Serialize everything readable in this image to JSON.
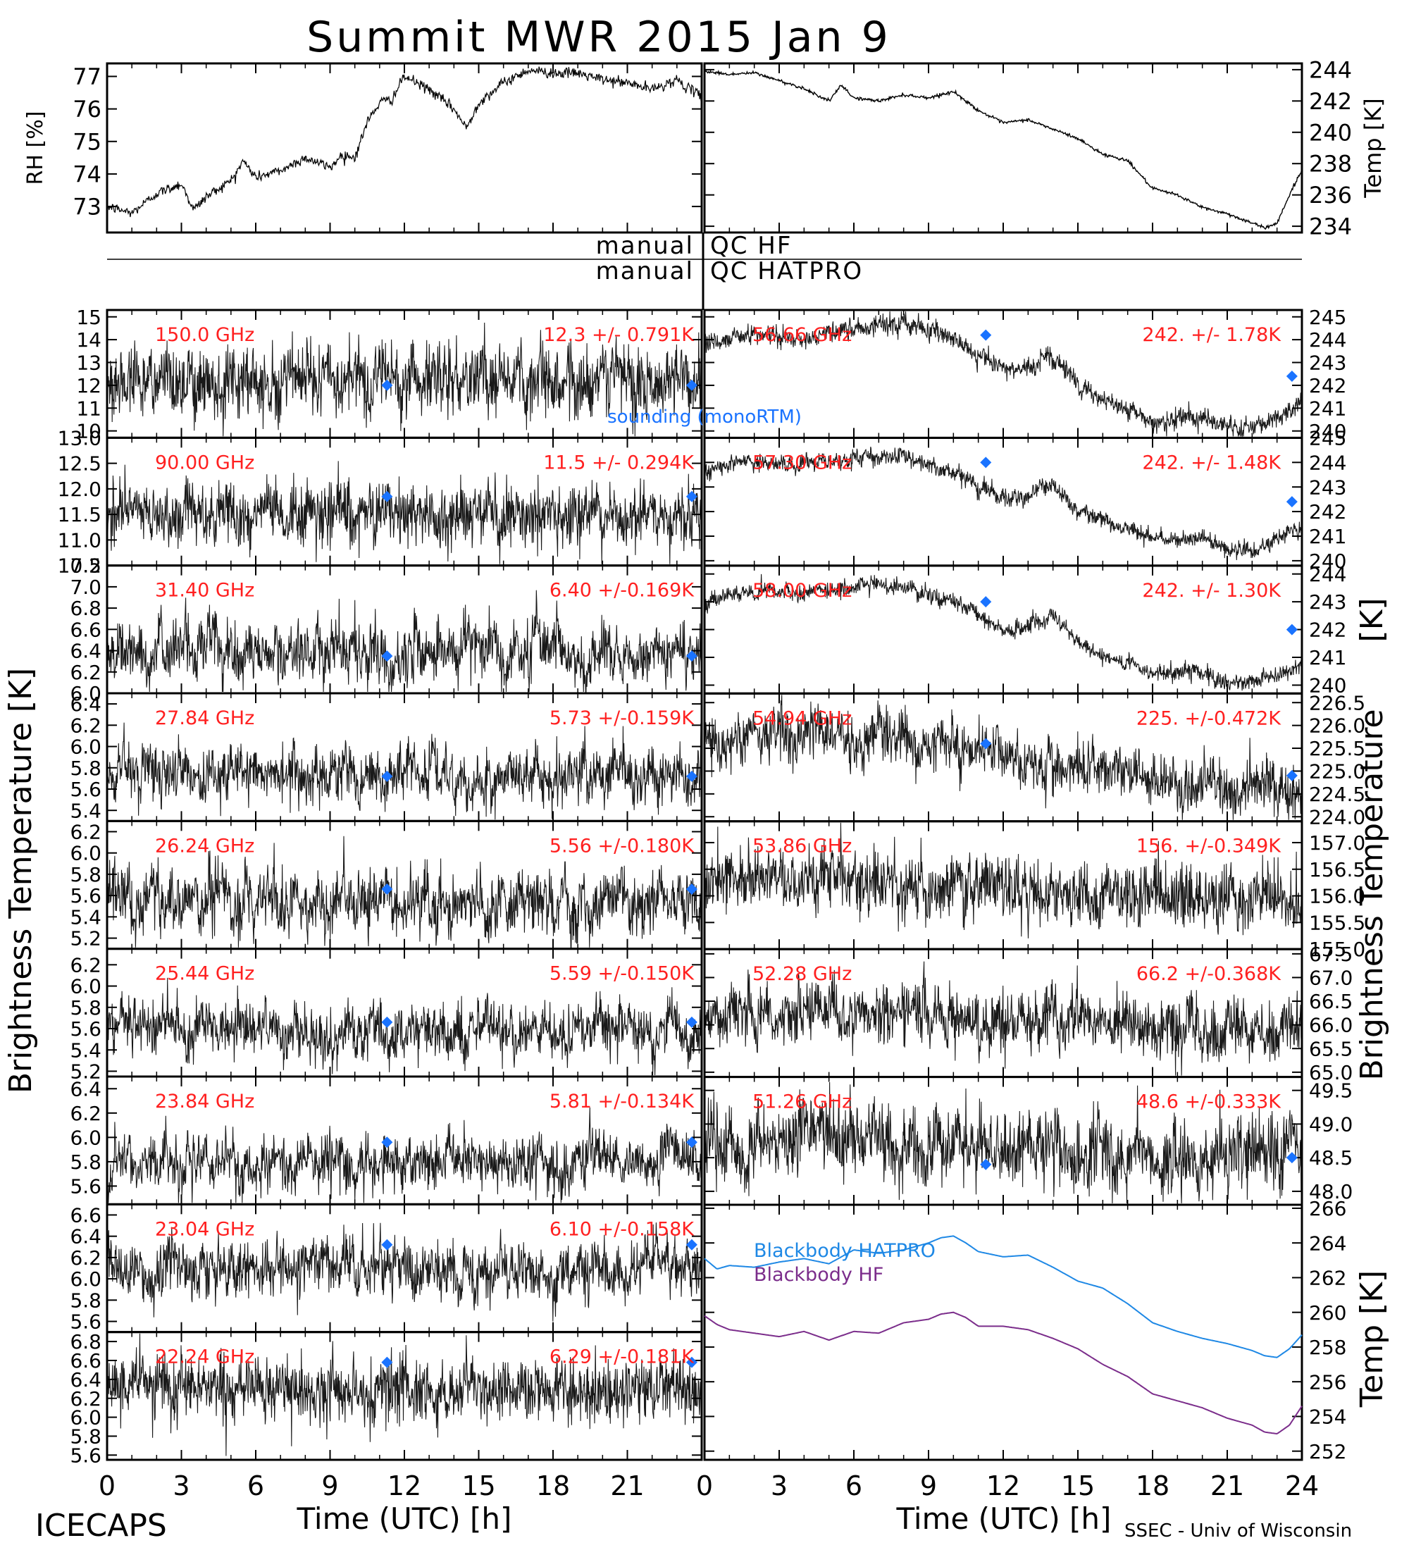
{
  "title": "Summit MWR 2015 Jan  9",
  "footer": {
    "left": "ICECAPS",
    "right": "SSEC - Univ of Wisconsin"
  },
  "qc": {
    "hf_prefix": "manual",
    "hf_label": "QC HF",
    "hatpro_prefix": "manual",
    "hatpro_label": "QC HATPRO"
  },
  "axis_labels": {
    "x": "Time (UTC) [h]",
    "rh": "RH [%]",
    "temp_top": "Temp [K]",
    "bt_left": "Brightness Temperature [K]",
    "bt_right_top": "[K]",
    "bt_right": "Brightness Temperature",
    "temp_bottom": "Temp [K]"
  },
  "colors": {
    "label_red": "#ff2020",
    "sounding_blue": "#1a73ff",
    "hatpro_line": "#1e88e5",
    "hf_line": "#7b2d8b",
    "data": "#000000"
  },
  "chart_data": {
    "type": "line",
    "x_ticks": [
      0,
      3,
      6,
      9,
      12,
      15,
      18,
      21,
      24
    ],
    "x_tick_labels_left": [
      "0",
      "3",
      "6",
      "9",
      "12",
      "15",
      "18",
      "21"
    ],
    "x_tick_labels_right": [
      "0",
      "3",
      "6",
      "9",
      "12",
      "15",
      "18",
      "21",
      "24"
    ],
    "sounding_label": "sounding (monoRTM)",
    "top_left": {
      "ylabel": "RH [%]",
      "ylim": [
        72.2,
        77.4
      ],
      "yticks": [
        73,
        74,
        75,
        76,
        77
      ],
      "x": [
        0,
        1,
        2,
        3,
        3.5,
        4,
        5,
        5.5,
        6,
        7,
        7.5,
        8,
        9,
        9.5,
        10,
        10.5,
        11,
        11.5,
        12,
        13,
        14,
        14.5,
        15,
        16,
        17,
        18,
        19,
        20,
        21,
        22,
        23,
        23.5,
        24
      ],
      "y": [
        73.0,
        72.8,
        73.4,
        73.7,
        72.9,
        73.3,
        73.8,
        74.4,
        73.9,
        74.1,
        74.3,
        74.5,
        74.2,
        74.6,
        74.5,
        75.6,
        76.2,
        76.3,
        77.0,
        76.6,
        76.0,
        75.4,
        76.2,
        76.8,
        77.2,
        77.1,
        77.1,
        76.9,
        76.8,
        76.6,
        76.9,
        76.6,
        76.4
      ]
    },
    "top_right": {
      "ylabel": "Temp [K]",
      "ylim": [
        233.6,
        244.4
      ],
      "yticks": [
        234,
        236,
        238,
        240,
        242,
        244
      ],
      "x": [
        0,
        1,
        2,
        3,
        4,
        5,
        5.5,
        6,
        7,
        8,
        9,
        10,
        11,
        12,
        13,
        14,
        15,
        16,
        17,
        18,
        19,
        20,
        21,
        22,
        22.5,
        23,
        23.5,
        24
      ],
      "y": [
        243.9,
        243.7,
        243.8,
        243.3,
        242.8,
        242.0,
        243.0,
        242.2,
        242.0,
        242.4,
        242.2,
        242.6,
        241.4,
        240.6,
        240.8,
        240.2,
        239.6,
        238.6,
        238.2,
        236.4,
        236.0,
        235.2,
        234.8,
        234.2,
        233.9,
        234.2,
        236.0,
        237.6
      ]
    },
    "left_panels": [
      {
        "freq": "150.0 GHz",
        "stats": "12.3 +/- 0.791K",
        "ylim": [
          9.7,
          15.3
        ],
        "yticks": [
          10,
          11,
          12,
          13,
          14,
          15
        ],
        "ytick_labels": [
          "10",
          "11",
          "12",
          "13",
          "14",
          "15"
        ],
        "mean": 12.3,
        "sd": 0.791,
        "sounding": [
          {
            "x": 11.3,
            "y": 12.0
          },
          {
            "x": 23.6,
            "y": 12.0
          }
        ],
        "noise": "medium"
      },
      {
        "freq": "90.00 GHz",
        "stats": "11.5 +/- 0.294K",
        "ylim": [
          10.5,
          13.0
        ],
        "yticks": [
          10.5,
          11.0,
          11.5,
          12.0,
          12.5,
          13.0
        ],
        "ytick_labels": [
          "10.5",
          "11.0",
          "11.5",
          "12.0",
          "12.5",
          "13.0"
        ],
        "mean": 11.5,
        "sd": 0.294,
        "sounding": [
          {
            "x": 11.3,
            "y": 11.85
          },
          {
            "x": 23.6,
            "y": 11.85
          }
        ],
        "noise": "medium"
      },
      {
        "freq": "31.40 GHz",
        "stats": "6.40 +/-0.169K",
        "ylim": [
          6.0,
          7.2
        ],
        "yticks": [
          6.0,
          6.2,
          6.4,
          6.6,
          6.8,
          7.0,
          7.2
        ],
        "ytick_labels": [
          "6.0",
          "6.2",
          "6.4",
          "6.6",
          "6.8",
          "7.0",
          "7.2"
        ],
        "mean": 6.4,
        "sd": 0.169,
        "sounding": [
          {
            "x": 11.3,
            "y": 6.35
          },
          {
            "x": 23.6,
            "y": 6.35
          }
        ],
        "noise": "spiky"
      },
      {
        "freq": "27.84 GHz",
        "stats": "5.73 +/-0.159K",
        "ylim": [
          5.3,
          6.5
        ],
        "yticks": [
          5.4,
          5.6,
          5.8,
          6.0,
          6.2,
          6.4
        ],
        "ytick_labels": [
          "5.4",
          "5.6",
          "5.8",
          "6.0",
          "6.2",
          "6.4"
        ],
        "mean": 5.73,
        "sd": 0.159,
        "sounding": [
          {
            "x": 11.3,
            "y": 5.72
          },
          {
            "x": 23.6,
            "y": 5.72
          }
        ],
        "noise": "spiky"
      },
      {
        "freq": "26.24 GHz",
        "stats": "5.56 +/-0.180K",
        "ylim": [
          5.1,
          6.3
        ],
        "yticks": [
          5.2,
          5.4,
          5.6,
          5.8,
          6.0,
          6.2
        ],
        "ytick_labels": [
          "5.2",
          "5.4",
          "5.6",
          "5.8",
          "6.0",
          "6.2"
        ],
        "mean": 5.56,
        "sd": 0.18,
        "sounding": [
          {
            "x": 11.3,
            "y": 5.66
          },
          {
            "x": 23.6,
            "y": 5.66
          }
        ],
        "noise": "spiky"
      },
      {
        "freq": "25.44 GHz",
        "stats": "5.59 +/-0.150K",
        "ylim": [
          5.15,
          6.35
        ],
        "yticks": [
          5.2,
          5.4,
          5.6,
          5.8,
          6.0,
          6.2
        ],
        "ytick_labels": [
          "5.2",
          "5.4",
          "5.6",
          "5.8",
          "6.0",
          "6.2"
        ],
        "mean": 5.59,
        "sd": 0.15,
        "sounding": [
          {
            "x": 11.3,
            "y": 5.66
          },
          {
            "x": 23.6,
            "y": 5.66
          }
        ],
        "noise": "spiky"
      },
      {
        "freq": "23.84 GHz",
        "stats": "5.81 +/-0.134K",
        "ylim": [
          5.45,
          6.5
        ],
        "yticks": [
          5.6,
          5.8,
          6.0,
          6.2,
          6.4
        ],
        "ytick_labels": [
          "5.6",
          "5.8",
          "6.0",
          "6.2",
          "6.4"
        ],
        "mean": 5.81,
        "sd": 0.134,
        "sounding": [
          {
            "x": 11.3,
            "y": 5.96
          },
          {
            "x": 23.6,
            "y": 5.96
          }
        ],
        "noise": "spiky"
      },
      {
        "freq": "23.04 GHz",
        "stats": "6.10 +/-0.158K",
        "ylim": [
          5.5,
          6.7
        ],
        "yticks": [
          5.6,
          5.8,
          6.0,
          6.2,
          6.4,
          6.6
        ],
        "ytick_labels": [
          "5.6",
          "5.8",
          "6.0",
          "6.2",
          "6.4",
          "6.6"
        ],
        "mean": 6.1,
        "sd": 0.158,
        "sounding": [
          {
            "x": 11.3,
            "y": 6.32
          },
          {
            "x": 23.6,
            "y": 6.32
          }
        ],
        "noise": "spiky"
      },
      {
        "freq": "22.24 GHz",
        "stats": "6.29 +/-0.181K",
        "ylim": [
          5.55,
          6.9
        ],
        "yticks": [
          5.6,
          5.8,
          6.0,
          6.2,
          6.4,
          6.6,
          6.8
        ],
        "ytick_labels": [
          "5.6",
          "5.8",
          "6.0",
          "6.2",
          "6.4",
          "6.6",
          "6.8"
        ],
        "mean": 6.29,
        "sd": 0.181,
        "sounding": [
          {
            "x": 11.3,
            "y": 6.58
          },
          {
            "x": 23.6,
            "y": 6.58
          }
        ],
        "noise": "medium"
      }
    ],
    "right_panels": [
      {
        "freq": "56.66 GHz",
        "stats": "242. +/- 1.78K",
        "ylim": [
          239.7,
          245.3
        ],
        "yticks": [
          240,
          241,
          242,
          243,
          244,
          245
        ],
        "ytick_labels": [
          "240",
          "241",
          "242",
          "243",
          "244",
          "245"
        ],
        "sounding": [
          {
            "x": 11.3,
            "y": 244.2
          },
          {
            "x": 23.6,
            "y": 242.4
          }
        ],
        "trend_x": [
          0,
          1,
          2,
          3,
          4,
          5,
          6,
          7,
          8,
          9,
          10,
          11,
          12,
          13,
          14,
          15,
          16,
          17,
          18,
          19,
          20,
          21,
          22,
          23,
          24
        ],
        "trend_y": [
          243.8,
          244.1,
          244.3,
          244.2,
          244.1,
          244.3,
          244.5,
          244.7,
          244.7,
          244.4,
          244.0,
          243.3,
          242.7,
          242.8,
          243.3,
          242.0,
          241.3,
          241.0,
          240.3,
          240.5,
          240.6,
          240.2,
          240.2,
          240.6,
          241.3
        ],
        "noise_sd": 0.22
      },
      {
        "freq": "57.30 GHz",
        "stats": "242. +/- 1.48K",
        "ylim": [
          239.8,
          245.0
        ],
        "yticks": [
          240,
          241,
          242,
          243,
          244,
          245
        ],
        "ytick_labels": [
          "240",
          "241",
          "242",
          "243",
          "244",
          "245"
        ],
        "sounding": [
          {
            "x": 11.3,
            "y": 244.0
          },
          {
            "x": 23.6,
            "y": 242.4
          }
        ],
        "trend_x": [
          0,
          1,
          2,
          3,
          4,
          5,
          6,
          7,
          8,
          9,
          10,
          11,
          12,
          13,
          14,
          15,
          16,
          17,
          18,
          19,
          20,
          21,
          22,
          23,
          24
        ],
        "trend_y": [
          243.6,
          243.9,
          244.0,
          244.0,
          243.9,
          244.1,
          244.2,
          244.3,
          244.3,
          244.0,
          243.6,
          243.0,
          242.6,
          242.6,
          243.1,
          242.0,
          241.6,
          241.3,
          240.8,
          240.9,
          240.9,
          240.5,
          240.5,
          240.9,
          241.3
        ],
        "noise_sd": 0.18
      },
      {
        "freq": "58.00 GHz",
        "stats": "242. +/- 1.30K",
        "ylim": [
          239.7,
          244.3
        ],
        "yticks": [
          240,
          241,
          242,
          243,
          244
        ],
        "ytick_labels": [
          "240",
          "241",
          "242",
          "243",
          "244"
        ],
        "sounding": [
          {
            "x": 11.3,
            "y": 243.0
          },
          {
            "x": 23.6,
            "y": 242.0
          }
        ],
        "trend_x": [
          0,
          1,
          2,
          3,
          4,
          5,
          6,
          7,
          8,
          9,
          10,
          11,
          12,
          13,
          14,
          15,
          16,
          17,
          18,
          19,
          20,
          21,
          22,
          23,
          24
        ],
        "trend_y": [
          242.9,
          243.2,
          243.3,
          243.3,
          243.3,
          243.4,
          243.5,
          243.6,
          243.6,
          243.3,
          243.0,
          242.5,
          242.0,
          242.0,
          242.5,
          241.5,
          241.0,
          240.8,
          240.4,
          240.5,
          240.5,
          240.1,
          240.1,
          240.4,
          240.8
        ],
        "noise_sd": 0.16
      },
      {
        "freq": "54.94 GHz",
        "stats": "225. +/-0.472K",
        "ylim": [
          223.9,
          226.7
        ],
        "yticks": [
          224.0,
          224.5,
          225.0,
          225.5,
          226.0,
          226.5
        ],
        "ytick_labels": [
          "224.0",
          "224.5",
          "225.0",
          "225.5",
          "226.0",
          "226.5"
        ],
        "sounding": [
          {
            "x": 11.3,
            "y": 225.6
          },
          {
            "x": 23.6,
            "y": 224.9
          }
        ],
        "trend_x": [
          0,
          3,
          6,
          9,
          12,
          15,
          18,
          21,
          24
        ],
        "trend_y": [
          225.6,
          225.8,
          225.7,
          225.6,
          225.3,
          225.0,
          224.8,
          224.6,
          224.7
        ],
        "noise_sd": 0.3
      },
      {
        "freq": "53.86 GHz",
        "stats": "156. +/-0.349K",
        "ylim": [
          155.0,
          157.4
        ],
        "yticks": [
          155.0,
          155.5,
          156.0,
          156.5,
          157.0
        ],
        "ytick_labels": [
          "155.0",
          "155.5",
          "156.0",
          "156.5",
          "157.0"
        ],
        "sounding": [],
        "trend_x": [
          0,
          6,
          12,
          18,
          24
        ],
        "trend_y": [
          156.3,
          156.3,
          156.1,
          156.0,
          155.9
        ],
        "noise_sd": 0.3
      },
      {
        "freq": "52.28 GHz",
        "stats": "66.2 +/-0.368K",
        "ylim": [
          64.9,
          67.6
        ],
        "yticks": [
          65.0,
          65.5,
          66.0,
          66.5,
          67.0,
          67.5
        ],
        "ytick_labels": [
          "65.0",
          "65.5",
          "66.0",
          "66.5",
          "67.0",
          "67.5"
        ],
        "sounding": [],
        "trend_x": [
          0,
          6,
          12,
          18,
          24
        ],
        "trend_y": [
          66.2,
          66.3,
          66.1,
          66.0,
          65.9
        ],
        "noise_sd": 0.32
      },
      {
        "freq": "51.26 GHz",
        "stats": "48.6 +/-0.333K",
        "ylim": [
          47.8,
          49.7
        ],
        "yticks": [
          48.0,
          48.5,
          49.0,
          49.5
        ],
        "ytick_labels": [
          "48.0",
          "48.5",
          "49.0",
          "49.5"
        ],
        "sounding": [
          {
            "x": 11.3,
            "y": 48.4
          },
          {
            "x": 23.6,
            "y": 48.5
          }
        ],
        "trend_x": [
          0,
          6,
          12,
          18,
          24
        ],
        "trend_y": [
          48.7,
          48.8,
          48.6,
          48.5,
          48.6
        ],
        "noise_sd": 0.28
      }
    ],
    "blackbody": {
      "ylabel": "Temp [K]",
      "ylim": [
        251.5,
        266.2
      ],
      "yticks": [
        252,
        254,
        256,
        258,
        260,
        262,
        264,
        266
      ],
      "series": [
        {
          "name": "Blackbody HATPRO",
          "x": [
            0,
            0.5,
            1,
            2,
            3,
            4,
            5,
            6,
            7,
            8,
            9,
            9.5,
            10,
            10.5,
            11,
            12,
            13,
            14,
            15,
            16,
            17,
            18,
            19,
            20,
            21,
            22,
            22.5,
            23,
            23.5,
            24
          ],
          "y": [
            263.1,
            262.5,
            262.7,
            262.6,
            262.9,
            263.1,
            262.8,
            263.6,
            263.4,
            263.6,
            264.0,
            264.3,
            264.4,
            264.0,
            263.5,
            263.2,
            263.3,
            262.6,
            261.8,
            261.4,
            260.5,
            259.4,
            258.9,
            258.5,
            258.2,
            257.8,
            257.5,
            257.4,
            257.9,
            258.7
          ]
        },
        {
          "name": "Blackbody HF",
          "x": [
            0,
            0.5,
            1,
            2,
            3,
            4,
            5,
            6,
            7,
            8,
            9,
            9.5,
            10,
            10.5,
            11,
            12,
            13,
            14,
            15,
            16,
            17,
            18,
            19,
            20,
            21,
            22,
            22.5,
            23,
            23.5,
            24
          ],
          "y": [
            259.8,
            259.3,
            259.0,
            258.8,
            258.6,
            258.9,
            258.4,
            258.9,
            258.8,
            259.4,
            259.6,
            259.9,
            260.0,
            259.7,
            259.2,
            259.2,
            259.0,
            258.5,
            257.9,
            257.0,
            256.3,
            255.3,
            254.9,
            254.5,
            253.9,
            253.5,
            253.1,
            253.0,
            253.5,
            254.6
          ]
        }
      ]
    }
  }
}
